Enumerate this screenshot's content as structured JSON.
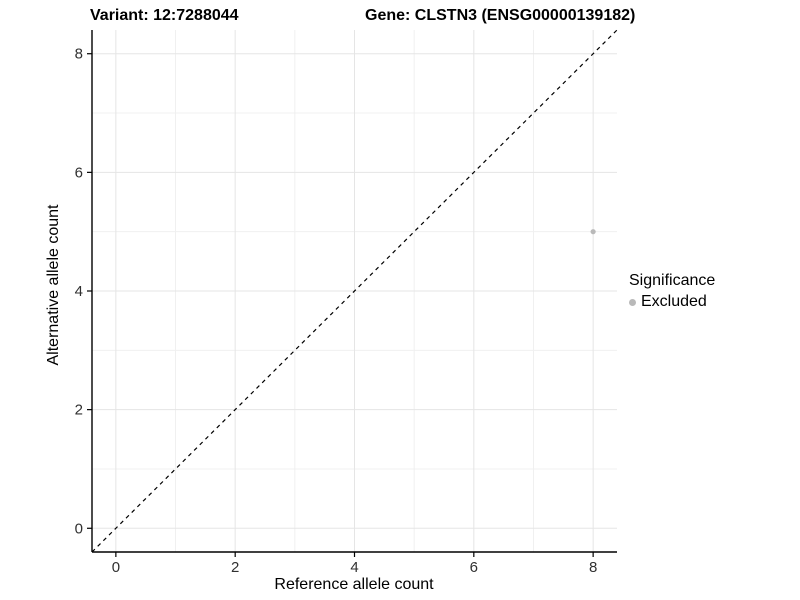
{
  "chart_data": {
    "type": "scatter",
    "title_left": "Variant: 12:7288044",
    "title_right": "Gene: CLSTN3 (ENSG00000139182)",
    "xlabel": "Reference allele count",
    "ylabel": "Alternative allele count",
    "xlim": [
      -0.4,
      8.4
    ],
    "ylim": [
      -0.4,
      8.4
    ],
    "xticks": [
      0,
      2,
      4,
      6,
      8
    ],
    "yticks": [
      0,
      2,
      4,
      6,
      8
    ],
    "minor_gridlines": [
      1,
      3,
      5,
      7
    ],
    "grid": true,
    "series": [
      {
        "name": "Excluded",
        "points": [
          {
            "x": 8,
            "y": 5
          }
        ]
      }
    ],
    "reference_line": {
      "type": "identity",
      "slope": 1,
      "intercept": 0,
      "style": "dashed"
    },
    "legend": {
      "title": "Significance",
      "position": "right",
      "entries": [
        {
          "label": "Excluded",
          "color": "#b9b9b9"
        }
      ]
    },
    "colors": {
      "point": "#b9b9b9",
      "grid_major": "#e5e5e5",
      "grid_minor": "#f0f0f0",
      "axis_line": "#000000",
      "tick_label": "#303030",
      "reference_line": "#000000"
    }
  }
}
